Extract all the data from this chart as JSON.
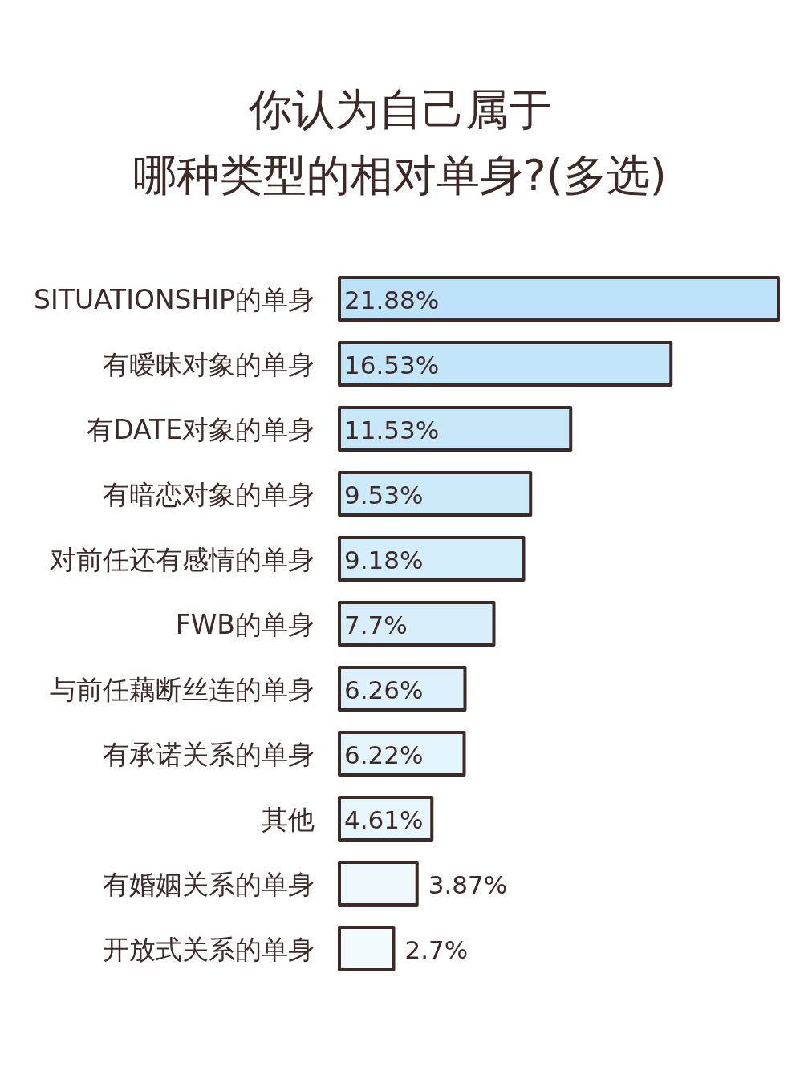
{
  "chart_data": {
    "type": "bar",
    "orientation": "horizontal",
    "title": "你认为自己属于哪种类型的相对单身?(多选)",
    "categories": [
      "SITUATIONSHIP的单身",
      "有暧昧对象的单身",
      "有DATE对象的单身",
      "有暗恋对象的单身",
      "对前任还有感情的单身",
      "FWB的单身",
      "与前任藕断丝连的单身",
      "有承诺关系的单身",
      "其他",
      "有婚姻关系的单身",
      "开放式关系的单身"
    ],
    "values": [
      21.88,
      16.53,
      11.53,
      9.53,
      9.18,
      7.7,
      6.26,
      6.22,
      4.61,
      3.87,
      2.7
    ],
    "value_labels": [
      "21.88%",
      "16.53%",
      "11.53%",
      "9.53%",
      "9.18%",
      "7.7%",
      "6.26%",
      "6.22%",
      "4.61%",
      "3.87%",
      "2.7%"
    ],
    "colors": [
      "#bde2f9",
      "#c2e5fa",
      "#c8e8fa",
      "#cdeafa",
      "#d3edfb",
      "#d8effb",
      "#ddf1fc",
      "#e3f4fc",
      "#e8f6fd",
      "#eef8fd",
      "#f2fafe"
    ]
  }
}
